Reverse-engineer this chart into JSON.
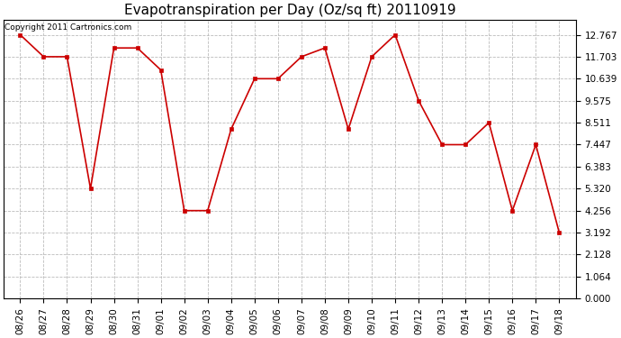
{
  "title": "Evapotranspiration per Day (Oz/sq ft) 20110919",
  "copyright_text": "Copyright 2011 Cartronics.com",
  "x_labels": [
    "08/26",
    "08/27",
    "08/28",
    "08/29",
    "08/30",
    "08/31",
    "09/01",
    "09/02",
    "09/03",
    "09/04",
    "09/05",
    "09/06",
    "09/07",
    "09/08",
    "09/09",
    "09/10",
    "09/11",
    "09/12",
    "09/13",
    "09/14",
    "09/15",
    "09/16",
    "09/17",
    "09/18"
  ],
  "y_values": [
    12.767,
    11.703,
    11.703,
    5.32,
    12.127,
    12.127,
    11.063,
    4.256,
    4.256,
    8.192,
    10.639,
    10.639,
    11.703,
    12.127,
    8.192,
    11.703,
    12.767,
    9.575,
    7.447,
    7.447,
    8.511,
    4.256,
    7.447,
    3.192
  ],
  "line_color": "#cc0000",
  "marker_color": "#cc0000",
  "marker": "s",
  "marker_size": 2.5,
  "line_width": 1.2,
  "background_color": "#ffffff",
  "plot_bg_color": "#ffffff",
  "grid_color": "#bbbbbb",
  "grid_style": "--",
  "yticks": [
    0.0,
    1.064,
    2.128,
    3.192,
    4.256,
    5.32,
    6.383,
    7.447,
    8.511,
    9.575,
    10.639,
    11.703,
    12.767
  ],
  "ylim": [
    0.0,
    13.5
  ],
  "title_fontsize": 11,
  "tick_fontsize": 7.5,
  "copyright_fontsize": 6.5
}
